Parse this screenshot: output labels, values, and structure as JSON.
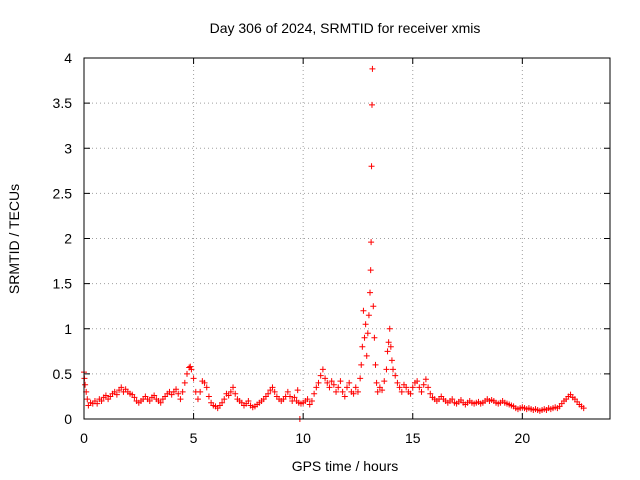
{
  "chart_data": {
    "type": "scatter",
    "title": "Day 306 of 2024, SRMTID for receiver xmis",
    "xlabel": "GPS time / hours",
    "ylabel": "SRMTID / TECUs",
    "xlim": [
      0,
      24
    ],
    "ylim": [
      0,
      4
    ],
    "grid": true,
    "marker": "plus",
    "marker_color": "#ff0000",
    "x_ticks": [
      {
        "value": 0,
        "label": "0"
      },
      {
        "value": 5,
        "label": "5"
      },
      {
        "value": 10,
        "label": "10"
      },
      {
        "value": 15,
        "label": "15"
      },
      {
        "value": 20,
        "label": "20"
      }
    ],
    "y_ticks": [
      {
        "value": 0,
        "label": "0"
      },
      {
        "value": 0.5,
        "label": "0.5"
      },
      {
        "value": 1,
        "label": "1"
      },
      {
        "value": 1.5,
        "label": "1.5"
      },
      {
        "value": 2,
        "label": "2"
      },
      {
        "value": 2.5,
        "label": "2.5"
      },
      {
        "value": 3,
        "label": "3"
      },
      {
        "value": 3.5,
        "label": "3.5"
      },
      {
        "value": 4,
        "label": "4"
      }
    ],
    "series": [
      {
        "name": "SRMTID",
        "points": [
          [
            0.0,
            0.52
          ],
          [
            0.02,
            0.45
          ],
          [
            0.05,
            0.38
          ],
          [
            0.1,
            0.3
          ],
          [
            0.15,
            0.22
          ],
          [
            0.2,
            0.15
          ],
          [
            0.3,
            0.18
          ],
          [
            0.4,
            0.17
          ],
          [
            0.5,
            0.2
          ],
          [
            0.6,
            0.17
          ],
          [
            0.7,
            0.22
          ],
          [
            0.8,
            0.2
          ],
          [
            0.9,
            0.24
          ],
          [
            1.0,
            0.26
          ],
          [
            1.1,
            0.22
          ],
          [
            1.2,
            0.25
          ],
          [
            1.3,
            0.28
          ],
          [
            1.4,
            0.3
          ],
          [
            1.5,
            0.27
          ],
          [
            1.6,
            0.32
          ],
          [
            1.7,
            0.35
          ],
          [
            1.8,
            0.3
          ],
          [
            1.9,
            0.33
          ],
          [
            2.0,
            0.3
          ],
          [
            2.1,
            0.28
          ],
          [
            2.2,
            0.27
          ],
          [
            2.3,
            0.24
          ],
          [
            2.4,
            0.2
          ],
          [
            2.5,
            0.18
          ],
          [
            2.6,
            0.2
          ],
          [
            2.7,
            0.22
          ],
          [
            2.8,
            0.25
          ],
          [
            2.9,
            0.22
          ],
          [
            3.0,
            0.2
          ],
          [
            3.1,
            0.24
          ],
          [
            3.2,
            0.26
          ],
          [
            3.3,
            0.22
          ],
          [
            3.4,
            0.2
          ],
          [
            3.5,
            0.18
          ],
          [
            3.6,
            0.22
          ],
          [
            3.7,
            0.25
          ],
          [
            3.8,
            0.28
          ],
          [
            3.9,
            0.3
          ],
          [
            4.0,
            0.27
          ],
          [
            4.1,
            0.3
          ],
          [
            4.2,
            0.33
          ],
          [
            4.3,
            0.28
          ],
          [
            4.4,
            0.22
          ],
          [
            4.5,
            0.3
          ],
          [
            4.6,
            0.4
          ],
          [
            4.7,
            0.5
          ],
          [
            4.8,
            0.57
          ],
          [
            4.85,
            0.58
          ],
          [
            4.9,
            0.55
          ],
          [
            5.0,
            0.45
          ],
          [
            5.1,
            0.3
          ],
          [
            5.2,
            0.22
          ],
          [
            5.3,
            0.3
          ],
          [
            5.4,
            0.42
          ],
          [
            5.5,
            0.4
          ],
          [
            5.6,
            0.35
          ],
          [
            5.7,
            0.25
          ],
          [
            5.8,
            0.18
          ],
          [
            5.9,
            0.15
          ],
          [
            6.0,
            0.14
          ],
          [
            6.1,
            0.12
          ],
          [
            6.2,
            0.15
          ],
          [
            6.3,
            0.18
          ],
          [
            6.4,
            0.22
          ],
          [
            6.5,
            0.28
          ],
          [
            6.6,
            0.26
          ],
          [
            6.7,
            0.3
          ],
          [
            6.8,
            0.35
          ],
          [
            6.9,
            0.28
          ],
          [
            7.0,
            0.22
          ],
          [
            7.1,
            0.2
          ],
          [
            7.2,
            0.18
          ],
          [
            7.3,
            0.15
          ],
          [
            7.4,
            0.17
          ],
          [
            7.5,
            0.2
          ],
          [
            7.6,
            0.15
          ],
          [
            7.7,
            0.13
          ],
          [
            7.8,
            0.14
          ],
          [
            7.9,
            0.16
          ],
          [
            8.0,
            0.18
          ],
          [
            8.1,
            0.2
          ],
          [
            8.2,
            0.22
          ],
          [
            8.3,
            0.25
          ],
          [
            8.4,
            0.28
          ],
          [
            8.5,
            0.32
          ],
          [
            8.6,
            0.35
          ],
          [
            8.7,
            0.3
          ],
          [
            8.8,
            0.25
          ],
          [
            8.9,
            0.22
          ],
          [
            9.0,
            0.2
          ],
          [
            9.1,
            0.22
          ],
          [
            9.2,
            0.25
          ],
          [
            9.3,
            0.3
          ],
          [
            9.4,
            0.25
          ],
          [
            9.5,
            0.2
          ],
          [
            9.6,
            0.24
          ],
          [
            9.7,
            0.2
          ],
          [
            9.75,
            0.32
          ],
          [
            9.8,
            0.18
          ],
          [
            9.85,
            0.0
          ],
          [
            9.9,
            0.17
          ],
          [
            10.0,
            0.18
          ],
          [
            10.1,
            0.2
          ],
          [
            10.2,
            0.22
          ],
          [
            10.3,
            0.16
          ],
          [
            10.4,
            0.2
          ],
          [
            10.5,
            0.28
          ],
          [
            10.6,
            0.35
          ],
          [
            10.7,
            0.4
          ],
          [
            10.8,
            0.48
          ],
          [
            10.9,
            0.55
          ],
          [
            11.0,
            0.45
          ],
          [
            11.1,
            0.4
          ],
          [
            11.2,
            0.35
          ],
          [
            11.3,
            0.42
          ],
          [
            11.4,
            0.38
          ],
          [
            11.5,
            0.3
          ],
          [
            11.6,
            0.35
          ],
          [
            11.7,
            0.42
          ],
          [
            11.8,
            0.3
          ],
          [
            11.9,
            0.25
          ],
          [
            12.0,
            0.35
          ],
          [
            12.1,
            0.4
          ],
          [
            12.2,
            0.3
          ],
          [
            12.3,
            0.28
          ],
          [
            12.4,
            0.35
          ],
          [
            12.5,
            0.3
          ],
          [
            12.6,
            0.45
          ],
          [
            12.65,
            0.6
          ],
          [
            12.7,
            0.8
          ],
          [
            12.75,
            1.2
          ],
          [
            12.8,
            0.9
          ],
          [
            12.85,
            1.05
          ],
          [
            12.9,
            0.7
          ],
          [
            12.95,
            0.95
          ],
          [
            13.0,
            1.15
          ],
          [
            13.05,
            1.4
          ],
          [
            13.08,
            1.65
          ],
          [
            13.1,
            1.96
          ],
          [
            13.12,
            2.8
          ],
          [
            13.14,
            3.48
          ],
          [
            13.16,
            3.88
          ],
          [
            13.2,
            1.25
          ],
          [
            13.25,
            0.9
          ],
          [
            13.3,
            0.6
          ],
          [
            13.35,
            0.4
          ],
          [
            13.4,
            0.3
          ],
          [
            13.5,
            0.35
          ],
          [
            13.6,
            0.32
          ],
          [
            13.7,
            0.42
          ],
          [
            13.8,
            0.55
          ],
          [
            13.85,
            0.75
          ],
          [
            13.9,
            0.85
          ],
          [
            13.95,
            1.0
          ],
          [
            14.0,
            0.8
          ],
          [
            14.05,
            0.65
          ],
          [
            14.1,
            0.55
          ],
          [
            14.2,
            0.48
          ],
          [
            14.3,
            0.4
          ],
          [
            14.4,
            0.35
          ],
          [
            14.5,
            0.3
          ],
          [
            14.6,
            0.38
          ],
          [
            14.7,
            0.35
          ],
          [
            14.8,
            0.3
          ],
          [
            14.9,
            0.28
          ],
          [
            15.0,
            0.35
          ],
          [
            15.1,
            0.4
          ],
          [
            15.2,
            0.42
          ],
          [
            15.3,
            0.35
          ],
          [
            15.4,
            0.3
          ],
          [
            15.5,
            0.38
          ],
          [
            15.6,
            0.44
          ],
          [
            15.7,
            0.35
          ],
          [
            15.8,
            0.28
          ],
          [
            15.9,
            0.24
          ],
          [
            16.0,
            0.22
          ],
          [
            16.1,
            0.2
          ],
          [
            16.2,
            0.22
          ],
          [
            16.3,
            0.25
          ],
          [
            16.4,
            0.22
          ],
          [
            16.5,
            0.2
          ],
          [
            16.6,
            0.18
          ],
          [
            16.7,
            0.2
          ],
          [
            16.8,
            0.22
          ],
          [
            16.9,
            0.18
          ],
          [
            17.0,
            0.17
          ],
          [
            17.1,
            0.19
          ],
          [
            17.2,
            0.21
          ],
          [
            17.3,
            0.18
          ],
          [
            17.4,
            0.16
          ],
          [
            17.5,
            0.18
          ],
          [
            17.6,
            0.2
          ],
          [
            17.7,
            0.18
          ],
          [
            17.8,
            0.17
          ],
          [
            17.9,
            0.18
          ],
          [
            18.0,
            0.19
          ],
          [
            18.1,
            0.17
          ],
          [
            18.2,
            0.18
          ],
          [
            18.3,
            0.2
          ],
          [
            18.4,
            0.22
          ],
          [
            18.5,
            0.2
          ],
          [
            18.6,
            0.21
          ],
          [
            18.7,
            0.2
          ],
          [
            18.8,
            0.18
          ],
          [
            18.9,
            0.17
          ],
          [
            19.0,
            0.18
          ],
          [
            19.1,
            0.2
          ],
          [
            19.2,
            0.18
          ],
          [
            19.3,
            0.17
          ],
          [
            19.4,
            0.16
          ],
          [
            19.5,
            0.15
          ],
          [
            19.6,
            0.14
          ],
          [
            19.7,
            0.12
          ],
          [
            19.8,
            0.11
          ],
          [
            19.9,
            0.12
          ],
          [
            20.0,
            0.13
          ],
          [
            20.1,
            0.12
          ],
          [
            20.2,
            0.11
          ],
          [
            20.3,
            0.12
          ],
          [
            20.4,
            0.11
          ],
          [
            20.5,
            0.1
          ],
          [
            20.6,
            0.11
          ],
          [
            20.7,
            0.1
          ],
          [
            20.8,
            0.09
          ],
          [
            20.9,
            0.1
          ],
          [
            21.0,
            0.11
          ],
          [
            21.1,
            0.1
          ],
          [
            21.2,
            0.12
          ],
          [
            21.3,
            0.11
          ],
          [
            21.4,
            0.12
          ],
          [
            21.5,
            0.13
          ],
          [
            21.6,
            0.12
          ],
          [
            21.7,
            0.14
          ],
          [
            21.8,
            0.17
          ],
          [
            21.9,
            0.2
          ],
          [
            22.0,
            0.22
          ],
          [
            22.1,
            0.25
          ],
          [
            22.2,
            0.27
          ],
          [
            22.3,
            0.24
          ],
          [
            22.4,
            0.22
          ],
          [
            22.5,
            0.19
          ],
          [
            22.6,
            0.16
          ],
          [
            22.7,
            0.14
          ],
          [
            22.8,
            0.12
          ]
        ]
      }
    ]
  }
}
